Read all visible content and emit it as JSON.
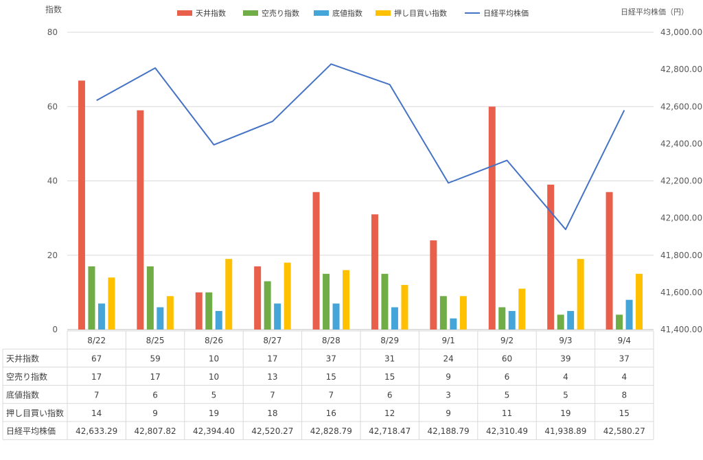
{
  "chart_data": {
    "type": "bar",
    "categories": [
      "8/22",
      "8/25",
      "8/26",
      "8/27",
      "8/28",
      "8/29",
      "9/1",
      "9/2",
      "9/3",
      "9/4"
    ],
    "y_left_label": "指数",
    "y_right_label": "日経平均株価（円）",
    "y_left_range": [
      0,
      80
    ],
    "y_left_ticks": [
      "0",
      "20",
      "40",
      "60",
      "80"
    ],
    "y_right_range": [
      41400,
      43000
    ],
    "y_right_ticks": [
      "41,400.00",
      "41,600.00",
      "41,800.00",
      "42,000.00",
      "42,200.00",
      "42,400.00",
      "42,600.00",
      "42,800.00",
      "43,000.00"
    ],
    "grid": true,
    "legend_position": "top",
    "series": [
      {
        "name": "天井指数",
        "type": "bar",
        "axis": "left",
        "color": "#e8604c",
        "values": [
          67,
          59,
          10,
          17,
          37,
          31,
          24,
          60,
          39,
          37
        ],
        "labels": [
          "67",
          "59",
          "10",
          "17",
          "37",
          "31",
          "24",
          "60",
          "39",
          "37"
        ]
      },
      {
        "name": "空売り指数",
        "type": "bar",
        "axis": "left",
        "color": "#70ad47",
        "values": [
          17,
          17,
          10,
          13,
          15,
          15,
          9,
          6,
          4,
          4
        ],
        "labels": [
          "17",
          "17",
          "10",
          "13",
          "15",
          "15",
          "9",
          "6",
          "4",
          "4"
        ]
      },
      {
        "name": "底値指数",
        "type": "bar",
        "axis": "left",
        "color": "#45a5d8",
        "values": [
          7,
          6,
          5,
          7,
          7,
          6,
          3,
          5,
          5,
          8
        ],
        "labels": [
          "7",
          "6",
          "5",
          "7",
          "7",
          "6",
          "3",
          "5",
          "5",
          "8"
        ]
      },
      {
        "name": "押し目買い指数",
        "type": "bar",
        "axis": "left",
        "color": "#ffc000",
        "values": [
          14,
          9,
          19,
          18,
          16,
          12,
          9,
          11,
          19,
          15
        ],
        "labels": [
          "14",
          "9",
          "19",
          "18",
          "16",
          "12",
          "9",
          "11",
          "19",
          "15"
        ]
      },
      {
        "name": "日経平均株価",
        "type": "line",
        "axis": "right",
        "color": "#4472c4",
        "values": [
          42633.29,
          42807.82,
          42394.4,
          42520.27,
          42828.79,
          42718.47,
          42188.79,
          42310.49,
          41938.89,
          42580.27
        ],
        "labels": [
          "42,633.29",
          "42,807.82",
          "42,394.40",
          "42,520.27",
          "42,828.79",
          "42,718.47",
          "42,188.79",
          "42,310.49",
          "41,938.89",
          "42,580.27"
        ]
      }
    ]
  }
}
